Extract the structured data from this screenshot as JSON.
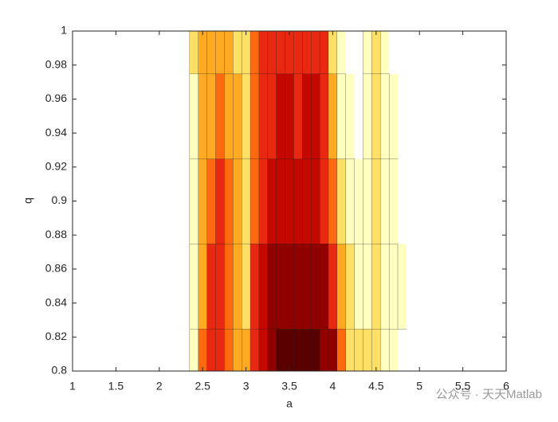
{
  "chart_data": {
    "type": "contour",
    "xlabel": "a",
    "ylabel": "q",
    "x": [
      2.3,
      2.4,
      2.5,
      2.6,
      2.7,
      2.8,
      2.9,
      3.0,
      3.1,
      3.2,
      3.3,
      3.4,
      3.5,
      3.6,
      3.7,
      3.8,
      3.9,
      4.0,
      4.1,
      4.2,
      4.3,
      4.4,
      4.5,
      4.6,
      4.7,
      4.8,
      4.9
    ],
    "y": [
      0.8,
      0.85,
      0.9,
      0.95,
      1.0
    ],
    "z": [
      [
        0,
        1,
        4,
        5,
        5,
        4,
        3,
        3,
        5,
        6,
        7,
        8,
        8,
        8,
        8,
        8,
        7,
        7,
        4,
        2,
        2,
        2,
        2,
        1,
        1,
        0,
        0
      ],
      [
        0,
        1,
        3,
        5,
        5,
        4,
        3,
        2,
        5,
        6,
        7,
        7,
        7,
        7,
        7,
        7,
        7,
        5,
        3,
        2,
        1,
        1,
        2,
        1,
        1,
        1,
        0
      ],
      [
        0,
        1,
        3,
        4,
        5,
        4,
        3,
        2,
        4,
        5,
        6,
        6,
        6,
        6,
        6,
        6,
        5,
        4,
        2,
        1,
        1,
        1,
        2,
        1,
        1,
        0,
        0
      ],
      [
        0,
        1,
        3,
        3,
        4,
        3,
        3,
        2,
        4,
        5,
        5,
        6,
        6,
        5,
        6,
        6,
        5,
        3,
        1,
        1,
        0,
        1,
        2,
        1,
        1,
        0,
        0
      ],
      [
        0,
        2,
        3,
        3,
        3,
        3,
        2,
        2,
        4,
        5,
        5,
        5,
        5,
        5,
        5,
        5,
        5,
        2,
        1,
        0,
        0,
        1,
        2,
        1,
        0,
        0,
        0
      ]
    ],
    "colors": [
      "#ffffff",
      "#ffffc0",
      "#ffe066",
      "#ffaa22",
      "#ff6a10",
      "#e82810",
      "#c40800",
      "#900000",
      "#5a0000"
    ],
    "xlim": [
      1,
      6
    ],
    "xticks": [
      1,
      1.5,
      2,
      2.5,
      3,
      3.5,
      4,
      4.5,
      5,
      5.5,
      6
    ],
    "ylim": [
      0.8,
      1
    ],
    "yticks": [
      0.8,
      0.82,
      0.84,
      0.86,
      0.88,
      0.9,
      0.92,
      0.94,
      0.96,
      0.98,
      1
    ],
    "watermark": "公众号 · 天天Matlab"
  }
}
